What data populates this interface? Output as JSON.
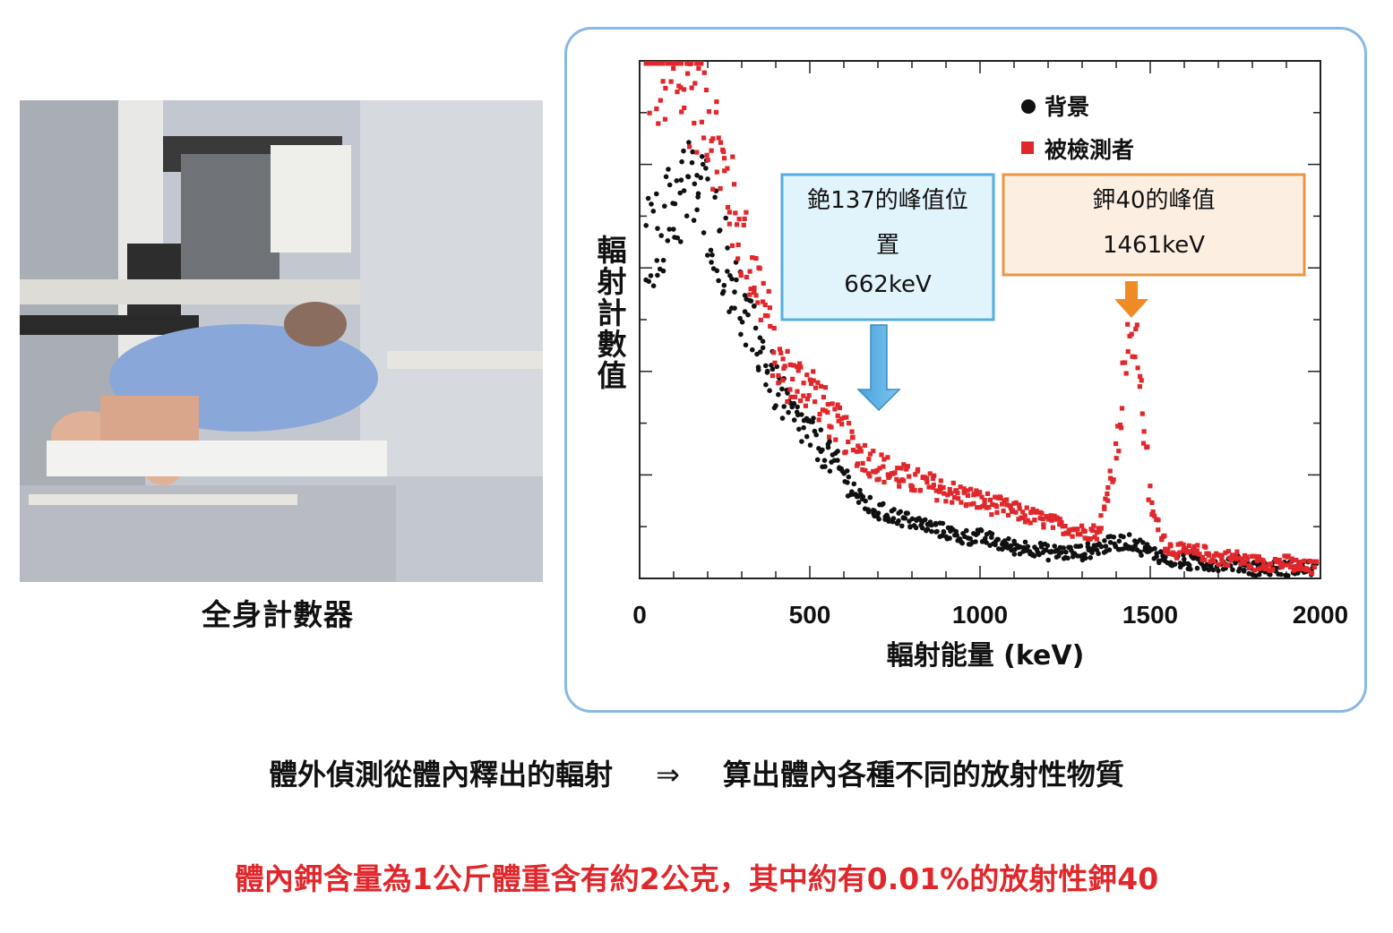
{
  "photo": {
    "caption": "全身計數器"
  },
  "chart_data": {
    "type": "scatter",
    "xlabel": "輻射能量 (keV)",
    "ylabel": "輻射計數值",
    "xlim": [
      0,
      2000
    ],
    "ylim": [
      0,
      100
    ],
    "x_ticks": [
      "0",
      "500",
      "1000",
      "1500",
      "2000"
    ],
    "y_ticks_labeled": false,
    "grid": false,
    "legend_position": "top-right",
    "series": [
      {
        "name": "背景",
        "color": "#111111",
        "marker": "circle",
        "x": [
          40,
          80,
          120,
          160,
          200,
          240,
          280,
          320,
          360,
          400,
          450,
          500,
          550,
          600,
          650,
          700,
          750,
          800,
          850,
          900,
          950,
          1000,
          1050,
          1100,
          1150,
          1200,
          1250,
          1300,
          1350,
          1400,
          1450,
          1500,
          1550,
          1600,
          1650,
          1700,
          1750,
          1800,
          1850,
          1900,
          1950,
          2000
        ],
        "y": [
          65,
          70,
          74,
          76,
          72,
          64,
          57,
          48,
          44,
          37,
          31,
          28,
          24,
          20,
          15,
          13,
          12,
          11,
          10,
          9,
          8,
          8,
          7,
          6,
          6,
          5,
          5,
          5,
          6,
          7,
          7,
          5,
          4,
          3,
          3,
          3,
          3,
          2,
          2,
          2,
          2,
          2
        ]
      },
      {
        "name": "被檢測者",
        "color": "#e0282c",
        "marker": "square",
        "x": [
          40,
          80,
          120,
          160,
          200,
          240,
          280,
          320,
          360,
          400,
          450,
          500,
          550,
          600,
          650,
          700,
          750,
          800,
          850,
          900,
          950,
          1000,
          1050,
          1100,
          1150,
          1200,
          1250,
          1300,
          1350,
          1400,
          1430,
          1450,
          1470,
          1500,
          1550,
          1600,
          1650,
          1700,
          1750,
          1800,
          1850,
          1900,
          1950,
          2000
        ],
        "y": [
          99,
          98,
          97,
          96,
          92,
          80,
          70,
          62,
          55,
          42,
          38,
          38,
          32,
          28,
          24,
          22,
          20,
          19,
          18,
          17,
          16,
          15,
          14,
          13,
          12,
          11,
          10,
          9,
          9,
          24,
          44,
          48,
          40,
          14,
          6,
          5,
          5,
          4,
          4,
          3,
          3,
          3,
          2,
          2
        ]
      }
    ],
    "annotations": [
      {
        "label_line1": "銫137的峰值位",
        "label_line2": "置",
        "label_line3": "662keV",
        "x": 662,
        "color": "#55aee0"
      },
      {
        "label_line1": "鉀40的峰值",
        "label_line2": "1461keV",
        "x": 1461,
        "color": "#f08a24"
      }
    ]
  },
  "notes": {
    "left": "體外偵測從體內釋出的輻射",
    "arrow": "⇒",
    "right": "算出體內各種不同的放射性物質",
    "red": "體內鉀含量為1公斤體重含有約2公克，其中約有0.01%的放射性鉀40"
  }
}
